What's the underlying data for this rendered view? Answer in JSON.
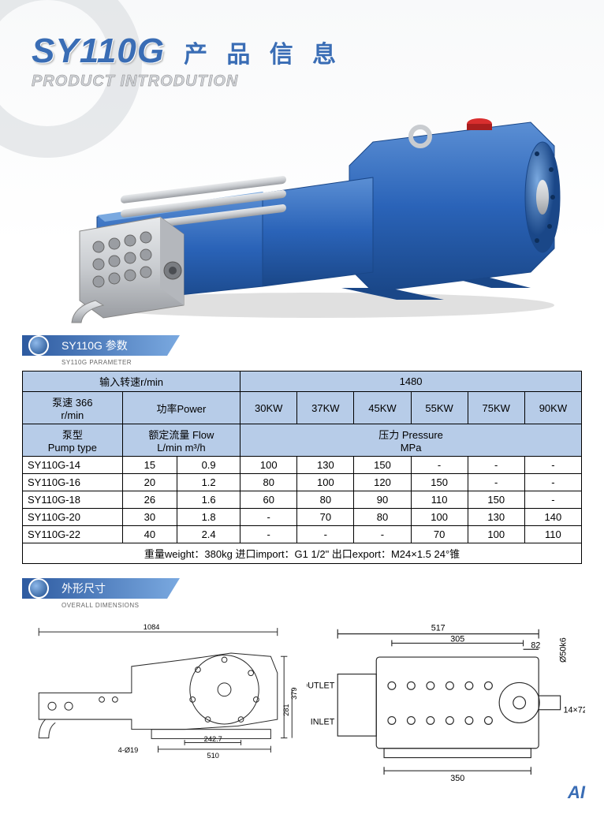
{
  "header": {
    "model": "SY110G",
    "cn_title": "产 品 信 息",
    "sub_title": "PRODUCT INTRODUTION"
  },
  "tabs": {
    "param_cn": "SY110G 参数",
    "param_en": "SY110G PARAMETER",
    "dim_cn": "外形尺寸",
    "dim_en": "OVERALL DIMENSIONS"
  },
  "colors": {
    "brand": "#3a6db5",
    "header_bg": "#b7cce8",
    "pump_body": "#2a63b8",
    "pump_body_dark": "#1a4788",
    "pump_body_light": "#5b8fd4",
    "steel": "#c9ccd0",
    "steel_light": "#e8eaec",
    "steel_dark": "#9a9da2",
    "red_btn": "#d82e2e"
  },
  "table": {
    "input_speed_label": "输入转速r/min",
    "input_speed_value": "1480",
    "pump_speed_label_1": "泵速 366",
    "pump_speed_label_2": "r/min",
    "power_label": "功率Power",
    "power_cols": [
      "30KW",
      "37KW",
      "45KW",
      "55KW",
      "75KW",
      "90KW"
    ],
    "pump_type_label_1": "泵型",
    "pump_type_label_2": "Pump type",
    "flow_label_1": "额定流量 Flow",
    "flow_label_2": "L/min  m³/h",
    "pressure_label_1": "压力 Pressure",
    "pressure_label_2": "MPa",
    "rows": [
      {
        "type": "SY110G-14",
        "lmin": "15",
        "m3h": "0.9",
        "p": [
          "100",
          "130",
          "150",
          "-",
          "-",
          "-"
        ]
      },
      {
        "type": "SY110G-16",
        "lmin": "20",
        "m3h": "1.2",
        "p": [
          "80",
          "100",
          "120",
          "150",
          "-",
          "-"
        ]
      },
      {
        "type": "SY110G-18",
        "lmin": "26",
        "m3h": "1.6",
        "p": [
          "60",
          "80",
          "90",
          "110",
          "150",
          "-"
        ]
      },
      {
        "type": "SY110G-20",
        "lmin": "30",
        "m3h": "1.8",
        "p": [
          "-",
          "70",
          "80",
          "100",
          "130",
          "140"
        ]
      },
      {
        "type": "SY110G-22",
        "lmin": "40",
        "m3h": "2.4",
        "p": [
          "-",
          "-",
          "-",
          "70",
          "100",
          "110"
        ]
      }
    ],
    "footer": "重量weight：380kg  进口import：G1 1/2\"  出口export：M24×1.5 24°锥"
  },
  "dimensions": {
    "side": {
      "total_l": "1084",
      "base_l": "510",
      "base_off": "242.7",
      "holes": "4-Ø19",
      "h1": "281",
      "h2": "379"
    },
    "front": {
      "total_w": "517",
      "inner_w": "305",
      "off": "82",
      "shaft": "Ø50k6",
      "key": "14×72",
      "base_w": "350",
      "outlet": "OUTLET",
      "inlet": "INLET"
    }
  },
  "footer_logo": "AI"
}
